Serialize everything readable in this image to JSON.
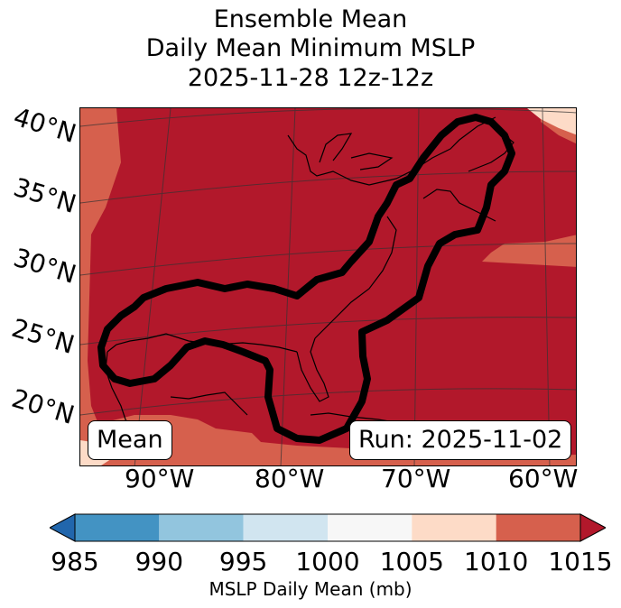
{
  "title": {
    "line1": "Ensemble Mean",
    "line2": "Daily Mean Minimum MSLP",
    "line3": "2025-11-28 12z-12z"
  },
  "map": {
    "lat_labels": [
      "40°N",
      "35°N",
      "30°N",
      "25°N",
      "20°N"
    ],
    "lon_labels": [
      "90°W",
      "80°W",
      "70°W",
      "60°W"
    ],
    "inset_left": "Mean",
    "inset_right": "Run: 2025-11-02",
    "colors": {
      "bin_1005_1010": "#fddbc7",
      "bin_1010_1015": "#d6604d",
      "over_1015": "#b2182b",
      "contour": "#000000",
      "coast": "#000000",
      "grid": "#333333"
    }
  },
  "colorbar": {
    "label": "MSLP Daily Mean (mb)",
    "ticks": [
      "985",
      "990",
      "995",
      "1000",
      "1005",
      "1010",
      "1015"
    ],
    "bins": [
      "#4393c3",
      "#92c5de",
      "#d1e5f0",
      "#f7f7f7",
      "#fddbc7",
      "#d6604d"
    ],
    "under_color": "#2166ac",
    "over_color": "#b2182b",
    "extend": "both"
  }
}
